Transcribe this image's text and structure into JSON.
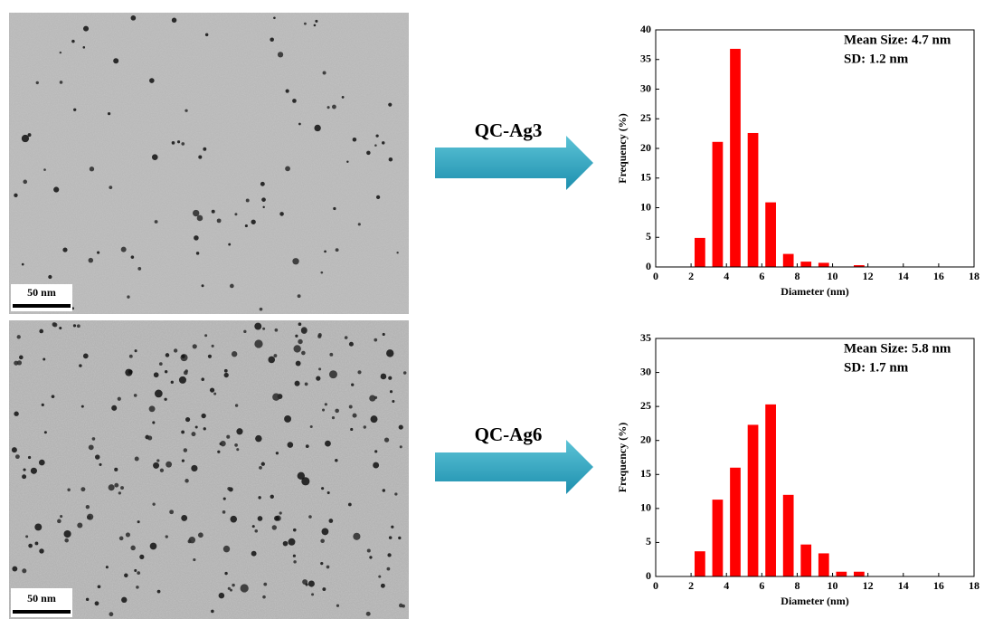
{
  "samples": [
    {
      "label": "QC-Ag3",
      "scale_bar": "50 nm"
    },
    {
      "label": "QC-Ag6",
      "scale_bar": "50 nm"
    }
  ],
  "chart_data": [
    {
      "type": "bar",
      "x": [
        2.5,
        3.5,
        4.5,
        5.5,
        6.5,
        7.5,
        8.5,
        9.5,
        10.5,
        11.5
      ],
      "values": [
        4.9,
        21.1,
        36.8,
        22.6,
        10.9,
        2.2,
        0.9,
        0.7,
        0,
        0.3
      ],
      "color": "#ff0000",
      "xlim": [
        0,
        18
      ],
      "xticks": [
        0,
        2,
        4,
        6,
        8,
        10,
        12,
        14,
        16,
        18
      ],
      "ylim": [
        0,
        40
      ],
      "yticks": [
        0,
        5,
        10,
        15,
        20,
        25,
        30,
        35,
        40
      ],
      "xlabel": "Diameter (nm)",
      "ylabel": "Frequency (%)",
      "annotations": [
        "Mean Size: 4.7 nm",
        "SD: 1.2 nm"
      ]
    },
    {
      "type": "bar",
      "x": [
        2.5,
        3.5,
        4.5,
        5.5,
        6.5,
        7.5,
        8.5,
        9.5,
        10.5,
        11.5
      ],
      "values": [
        3.7,
        11.3,
        16.0,
        22.3,
        25.3,
        12.0,
        4.7,
        3.4,
        0.7,
        0.7
      ],
      "color": "#ff0000",
      "xlim": [
        0,
        18
      ],
      "xticks": [
        0,
        2,
        4,
        6,
        8,
        10,
        12,
        14,
        16,
        18
      ],
      "ylim": [
        0,
        35
      ],
      "yticks": [
        0,
        5,
        10,
        15,
        20,
        25,
        30,
        35
      ],
      "xlabel": "Diameter (nm)",
      "ylabel": "Frequency (%)",
      "annotations": [
        "Mean Size: 5.8 nm",
        "SD: 1.7 nm"
      ]
    }
  ]
}
